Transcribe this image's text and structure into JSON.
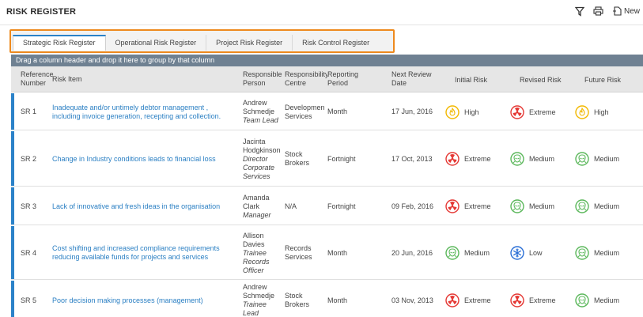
{
  "header": {
    "title": "RISK REGISTER",
    "new_label": "New"
  },
  "tabs": [
    {
      "label": "Strategic Risk Register"
    },
    {
      "label": "Operational Risk Register"
    },
    {
      "label": "Project Risk Register"
    },
    {
      "label": "Risk Control Register"
    }
  ],
  "group_bar": "Drag a column header and drop it here to group by that column",
  "columns": {
    "ref1": "Reference",
    "ref2": "Number",
    "item": "Risk Item",
    "person1": "Responsible",
    "person2": "Person",
    "centre1": "Responsibility",
    "centre2": "Centre",
    "period1": "Reporting",
    "period2": "Period",
    "date1": "Next Review",
    "date2": "Date",
    "initial": "Initial Risk",
    "revised": "Revised Risk",
    "future": "Future Risk"
  },
  "rows": [
    {
      "ref": "SR 1",
      "item": [
        "Inadequate and/or untimely debtor management ,",
        "including invoice generation, recepting and collection."
      ],
      "person": [
        "Andrew",
        "Schmedje"
      ],
      "role": [
        "Team Lead"
      ],
      "centre": [
        "Developmen",
        "Services"
      ],
      "period": "Month",
      "date": "17 Jun, 2016",
      "initial": {
        "label": "High",
        "icon": "fire-icon",
        "color": "#f2b800"
      },
      "revised": {
        "label": "Extreme",
        "icon": "radiation-icon",
        "color": "#e53935"
      },
      "future": {
        "label": "High",
        "icon": "fire-icon",
        "color": "#f2b800"
      }
    },
    {
      "ref": "SR 2",
      "item": [
        "Change in Industry conditions leads to financial loss"
      ],
      "person": [
        "Jacinta",
        "Hodgkinson"
      ],
      "role": [
        "Director",
        "Corporate",
        "Services"
      ],
      "centre": [
        "Stock",
        "Brokers"
      ],
      "period": "Fortnight",
      "date": "17 Oct, 2013",
      "initial": {
        "label": "Extreme",
        "icon": "radiation-icon",
        "color": "#e53935"
      },
      "revised": {
        "label": "Medium",
        "icon": "alien-icon",
        "color": "#5cb85c"
      },
      "future": {
        "label": "Medium",
        "icon": "alien-icon",
        "color": "#5cb85c"
      }
    },
    {
      "ref": "SR 3",
      "item": [
        "Lack of innovative and fresh ideas in the organisation"
      ],
      "person": [
        "Amanda",
        "Clark"
      ],
      "role": [
        "Manager"
      ],
      "centre": [
        "N/A"
      ],
      "period": "Fortnight",
      "date": "09 Feb, 2016",
      "initial": {
        "label": "Extreme",
        "icon": "radiation-icon",
        "color": "#e53935"
      },
      "revised": {
        "label": "Medium",
        "icon": "alien-icon",
        "color": "#5cb85c"
      },
      "future": {
        "label": "Medium",
        "icon": "alien-icon",
        "color": "#5cb85c"
      }
    },
    {
      "ref": "SR 4",
      "item": [
        "Cost shifting and increased compliance requirements",
        "reducing available funds for projects and services"
      ],
      "person": [
        "Allison",
        "Davies"
      ],
      "role": [
        "Trainee",
        "Records",
        "Officer"
      ],
      "centre": [
        "Records",
        "Services"
      ],
      "period": "Month",
      "date": "20 Jun, 2016",
      "initial": {
        "label": "Medium",
        "icon": "alien-icon",
        "color": "#5cb85c"
      },
      "revised": {
        "label": "Low",
        "icon": "snowflake-icon",
        "color": "#2b6fd6"
      },
      "future": {
        "label": "Medium",
        "icon": "alien-icon",
        "color": "#5cb85c"
      }
    },
    {
      "ref": "SR 5",
      "item": [
        "Poor decision making processes (management)"
      ],
      "person": [
        "Andrew",
        "Schmedje"
      ],
      "role": [
        "Trainee",
        "Lead"
      ],
      "centre": [
        "Stock",
        "Brokers"
      ],
      "period": "Month",
      "date": "03 Nov, 2013",
      "initial": {
        "label": "Extreme",
        "icon": "radiation-icon",
        "color": "#e53935"
      },
      "revised": {
        "label": "Extreme",
        "icon": "radiation-icon",
        "color": "#e53935"
      },
      "future": {
        "label": "Medium",
        "icon": "alien-icon",
        "color": "#5cb85c"
      }
    }
  ]
}
